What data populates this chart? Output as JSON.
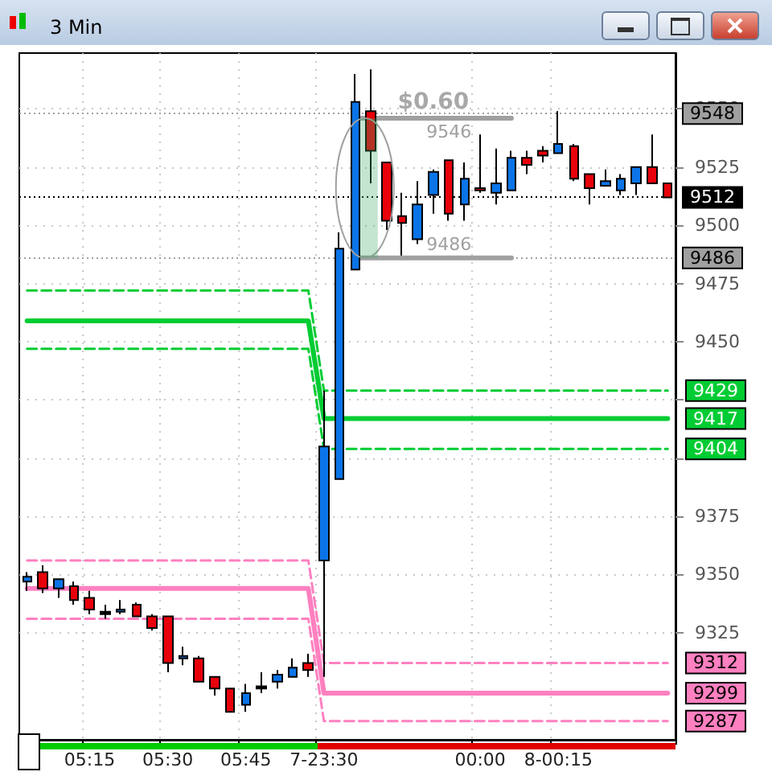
{
  "chart_data": {
    "type": "candlestick",
    "title": "3 Min",
    "categories": [
      null,
      null,
      null,
      null,
      "05:15",
      null,
      null,
      null,
      null,
      "05:30",
      null,
      null,
      null,
      null,
      "05:45",
      null,
      null,
      null,
      null,
      "7-23:30",
      null,
      null,
      null,
      null,
      null,
      null,
      null,
      null,
      null,
      "00:00",
      null,
      null,
      null,
      null,
      "8-00:15",
      null,
      null,
      null,
      null,
      null,
      null,
      null
    ],
    "ohlc": [
      [
        9347,
        9351,
        9343,
        9349
      ],
      [
        9351,
        9354,
        9342,
        9344
      ],
      [
        9344,
        9348,
        9340,
        9348
      ],
      [
        9345,
        9347,
        9337,
        9339
      ],
      [
        9340,
        9343,
        9333,
        9335
      ],
      [
        9334,
        9337,
        9331,
        9333
      ],
      [
        9334,
        9339,
        9333,
        9335
      ],
      [
        9337,
        9338,
        9332,
        9332
      ],
      [
        9332,
        9333,
        9326,
        9327
      ],
      [
        9332,
        9332,
        9308,
        9312
      ],
      [
        9314,
        9319,
        9311,
        9315
      ],
      [
        9314,
        9315,
        9304,
        9304
      ],
      [
        9306,
        9306,
        9298,
        9301
      ],
      [
        9301,
        9301,
        9291,
        9291
      ],
      [
        9294,
        9303,
        9291,
        9299
      ],
      [
        9301,
        9308,
        9299,
        9302
      ],
      [
        9304,
        9309,
        9301,
        9307
      ],
      [
        9306,
        9314,
        9306,
        9310
      ],
      [
        9312,
        9316,
        9306,
        9309
      ],
      [
        9356,
        9429,
        9306,
        9405
      ],
      [
        9391,
        9497,
        9391,
        9490
      ],
      [
        9481,
        9565,
        9481,
        9553
      ],
      [
        9549,
        9567,
        9518,
        9532
      ],
      [
        9527,
        9527,
        9498,
        9502
      ],
      [
        9504,
        9514,
        9487,
        9501
      ],
      [
        9494,
        9519,
        9492,
        9509
      ],
      [
        9513,
        9524,
        9505,
        9523
      ],
      [
        9528,
        9528,
        9502,
        9505
      ],
      [
        9509,
        9527,
        9502,
        9520
      ],
      [
        9516,
        9539,
        9514,
        9515
      ],
      [
        9514,
        9533,
        9509,
        9518
      ],
      [
        9515,
        9532,
        9515,
        9529
      ],
      [
        9529,
        9532,
        9522,
        9526
      ],
      [
        9532,
        9534,
        9527,
        9530
      ],
      [
        9531,
        9549,
        9531,
        9535
      ],
      [
        9534,
        9535,
        9519,
        9520
      ],
      [
        9522,
        9522,
        9509,
        9516
      ],
      [
        9517,
        9524,
        9517,
        9519
      ],
      [
        9515,
        9522,
        9513,
        9520
      ],
      [
        9518,
        9525,
        9513,
        9525
      ],
      [
        9525,
        9539,
        9518,
        9518
      ],
      [
        9518,
        9518,
        9512,
        9512
      ]
    ],
    "colors": [
      "#0a74e8",
      "#e8000a",
      "#0a74e8",
      "#e8000a",
      "#e8000a",
      "#000000",
      "#0a74e8",
      "#e8000a",
      "#e8000a",
      "#e8000a",
      "#0a74e8",
      "#e8000a",
      "#e8000a",
      "#e8000a",
      "#0a74e8",
      "#000000",
      "#0a74e8",
      "#0a74e8",
      "#e8000a",
      "#0a74e8",
      "#0a74e8",
      "#0a74e8",
      "#e8000a",
      "#e8000a",
      "#e8000a",
      "#0a74e8",
      "#0a74e8",
      "#e8000a",
      "#0a74e8",
      "#e8000a",
      "#0a74e8",
      "#0a74e8",
      "#e8000a",
      "#e8000a",
      "#0a74e8",
      "#e8000a",
      "#e8000a",
      "#0a74e8",
      "#0a74e8",
      "#0a74e8",
      "#e8000a",
      "#e8000a"
    ],
    "series": [
      {
        "type": "line",
        "color": "#a0a0a0",
        "line_style": "solid",
        "values": [
          null,
          null,
          null,
          null,
          null,
          null,
          null,
          null,
          null,
          null,
          null,
          null,
          null,
          null,
          null,
          null,
          null,
          null,
          null,
          null,
          null,
          9546,
          9546,
          9546,
          9546,
          9546,
          9546,
          9546,
          9546,
          9546,
          9546,
          9546,
          null,
          null,
          null,
          null,
          null,
          null,
          null,
          null,
          null,
          null
        ],
        "value_labels": [
          null,
          null,
          null,
          null,
          null,
          null,
          null,
          null,
          null,
          null,
          null,
          null,
          null,
          null,
          null,
          null,
          null,
          null,
          null,
          null,
          null,
          null,
          null,
          null,
          null,
          null,
          null,
          "9546",
          null,
          null,
          null,
          null,
          null,
          null,
          null,
          null,
          null,
          null,
          null,
          null,
          null,
          null
        ]
      },
      {
        "type": "line",
        "color": "#a0a0a0",
        "line_style": "solid",
        "values": [
          null,
          null,
          null,
          null,
          null,
          null,
          null,
          null,
          null,
          null,
          null,
          null,
          null,
          null,
          null,
          null,
          null,
          null,
          null,
          null,
          null,
          9486,
          9486,
          9486,
          9486,
          9486,
          9486,
          9486,
          9486,
          9486,
          9486,
          9486,
          null,
          null,
          null,
          null,
          null,
          null,
          null,
          null,
          null,
          null
        ],
        "value_labels": [
          null,
          null,
          null,
          null,
          null,
          null,
          null,
          null,
          null,
          null,
          null,
          null,
          null,
          null,
          null,
          null,
          null,
          null,
          null,
          null,
          null,
          null,
          null,
          null,
          null,
          null,
          null,
          "9486",
          null,
          null,
          null,
          null,
          null,
          null,
          null,
          null,
          null,
          null,
          null,
          null,
          null,
          null
        ]
      },
      {
        "type": "line",
        "color": "#00cc33",
        "line_style": "dashed",
        "values": [
          9472,
          9472,
          9472,
          9472,
          9472,
          9472,
          9472,
          9472,
          9472,
          9472,
          9472,
          9472,
          9472,
          9472,
          9472,
          9472,
          9472,
          9472,
          9472,
          9429,
          9429,
          9429,
          9429,
          9429,
          9429,
          9429,
          9429,
          9429,
          9429,
          9429,
          9429,
          9429,
          9429,
          9429,
          9429,
          9429,
          9429,
          9429,
          9429,
          9429,
          9429,
          9429
        ],
        "value_labels": [
          null,
          null,
          null,
          null,
          null,
          null,
          null,
          null,
          null,
          null,
          null,
          null,
          null,
          null,
          null,
          null,
          null,
          null,
          null,
          null,
          null,
          null,
          null,
          null,
          null,
          null,
          null,
          null,
          null,
          null,
          null,
          null,
          null,
          null,
          null,
          null,
          null,
          null,
          null,
          null,
          null,
          "9429"
        ]
      },
      {
        "type": "line",
        "color": "#00cc33",
        "line_style": "solid",
        "values": [
          9459,
          9459,
          9459,
          9459,
          9459,
          9459,
          9459,
          9459,
          9459,
          9459,
          9459,
          9459,
          9459,
          9459,
          9459,
          9459,
          9459,
          9459,
          9459,
          9417,
          9417,
          9417,
          9417,
          9417,
          9417,
          9417,
          9417,
          9417,
          9417,
          9417,
          9417,
          9417,
          9417,
          9417,
          9417,
          9417,
          9417,
          9417,
          9417,
          9417,
          9417,
          9417
        ],
        "value_labels": [
          null,
          null,
          null,
          null,
          null,
          null,
          null,
          null,
          null,
          null,
          null,
          null,
          null,
          null,
          null,
          null,
          null,
          null,
          null,
          null,
          null,
          null,
          null,
          null,
          null,
          null,
          null,
          null,
          null,
          null,
          null,
          null,
          null,
          null,
          null,
          null,
          null,
          null,
          null,
          null,
          null,
          "9417"
        ]
      },
      {
        "type": "line",
        "color": "#00cc33",
        "line_style": "dashed",
        "values": [
          9447,
          9447,
          9447,
          9447,
          9447,
          9447,
          9447,
          9447,
          9447,
          9447,
          9447,
          9447,
          9447,
          9447,
          9447,
          9447,
          9447,
          9447,
          9447,
          9404,
          9404,
          9404,
          9404,
          9404,
          9404,
          9404,
          9404,
          9404,
          9404,
          9404,
          9404,
          9404,
          9404,
          9404,
          9404,
          9404,
          9404,
          9404,
          9404,
          9404,
          9404,
          9404
        ],
        "value_labels": [
          null,
          null,
          null,
          null,
          null,
          null,
          null,
          null,
          null,
          null,
          null,
          null,
          null,
          null,
          null,
          null,
          null,
          null,
          null,
          null,
          null,
          null,
          null,
          null,
          null,
          null,
          null,
          null,
          null,
          null,
          null,
          null,
          null,
          null,
          null,
          null,
          null,
          null,
          null,
          null,
          null,
          "9404"
        ]
      },
      {
        "type": "line",
        "color": "#ff80c0",
        "line_style": "dashed",
        "values": [
          9356,
          9356,
          9356,
          9356,
          9356,
          9356,
          9356,
          9356,
          9356,
          9356,
          9356,
          9356,
          9356,
          9356,
          9356,
          9356,
          9356,
          9356,
          9356,
          9312,
          9312,
          9312,
          9312,
          9312,
          9312,
          9312,
          9312,
          9312,
          9312,
          9312,
          9312,
          9312,
          9312,
          9312,
          9312,
          9312,
          9312,
          9312,
          9312,
          9312,
          9312,
          9312
        ],
        "value_labels": [
          null,
          null,
          null,
          null,
          null,
          null,
          null,
          null,
          null,
          null,
          null,
          null,
          null,
          null,
          null,
          null,
          null,
          null,
          null,
          null,
          null,
          null,
          null,
          null,
          null,
          null,
          null,
          null,
          null,
          null,
          null,
          null,
          null,
          null,
          null,
          null,
          null,
          null,
          null,
          null,
          null,
          "9312"
        ]
      },
      {
        "type": "line",
        "color": "#ff80c0",
        "line_style": "solid",
        "values": [
          9344,
          9344,
          9344,
          9344,
          9344,
          9344,
          9344,
          9344,
          9344,
          9344,
          9344,
          9344,
          9344,
          9344,
          9344,
          9344,
          9344,
          9344,
          9344,
          9299,
          9299,
          9299,
          9299,
          9299,
          9299,
          9299,
          9299,
          9299,
          9299,
          9299,
          9299,
          9299,
          9299,
          9299,
          9299,
          9299,
          9299,
          9299,
          9299,
          9299,
          9299,
          9299
        ],
        "value_labels": [
          null,
          null,
          null,
          null,
          null,
          null,
          null,
          null,
          null,
          null,
          null,
          null,
          null,
          null,
          null,
          null,
          null,
          null,
          null,
          null,
          null,
          null,
          null,
          null,
          null,
          null,
          null,
          null,
          null,
          null,
          null,
          null,
          null,
          null,
          null,
          null,
          null,
          null,
          null,
          null,
          null,
          "9299"
        ]
      },
      {
        "type": "line",
        "color": "#ff80c0",
        "line_style": "dashed",
        "values": [
          9331,
          9331,
          9331,
          9331,
          9331,
          9331,
          9331,
          9331,
          9331,
          9331,
          9331,
          9331,
          9331,
          9331,
          9331,
          9331,
          9331,
          9331,
          9331,
          9287,
          9287,
          9287,
          9287,
          9287,
          9287,
          9287,
          9287,
          9287,
          9287,
          9287,
          9287,
          9287,
          9287,
          9287,
          9287,
          9287,
          9287,
          9287,
          9287,
          9287,
          9287,
          9287
        ],
        "value_labels": [
          null,
          null,
          null,
          null,
          null,
          null,
          null,
          null,
          null,
          null,
          null,
          null,
          null,
          null,
          null,
          null,
          null,
          null,
          null,
          null,
          null,
          null,
          null,
          null,
          null,
          null,
          null,
          null,
          null,
          null,
          null,
          null,
          null,
          null,
          null,
          null,
          null,
          null,
          null,
          null,
          null,
          "9287"
        ]
      }
    ],
    "ref_lines": [
      {
        "axis": "y",
        "value": 9548,
        "label": "9548",
        "color": "#a0a0a0",
        "line_style": "dotted"
      },
      {
        "axis": "y",
        "value": 9512,
        "label": "9512",
        "color": "#000000",
        "line_style": "dotted"
      },
      {
        "axis": "y",
        "value": 9486,
        "label": "9486",
        "color": "#a0a0a0",
        "line_style": "dotted"
      }
    ],
    "annotations": [
      "$0.60"
    ],
    "ylim": [
      9279,
      9574
    ],
    "yticks": [
      9325,
      9350,
      9375,
      {
        "value": 9400,
        "label": null
      },
      {
        "value": 9425,
        "label": null
      },
      9450,
      9475,
      9500,
      9525,
      9550
    ],
    "grid": true,
    "marker": "none"
  }
}
